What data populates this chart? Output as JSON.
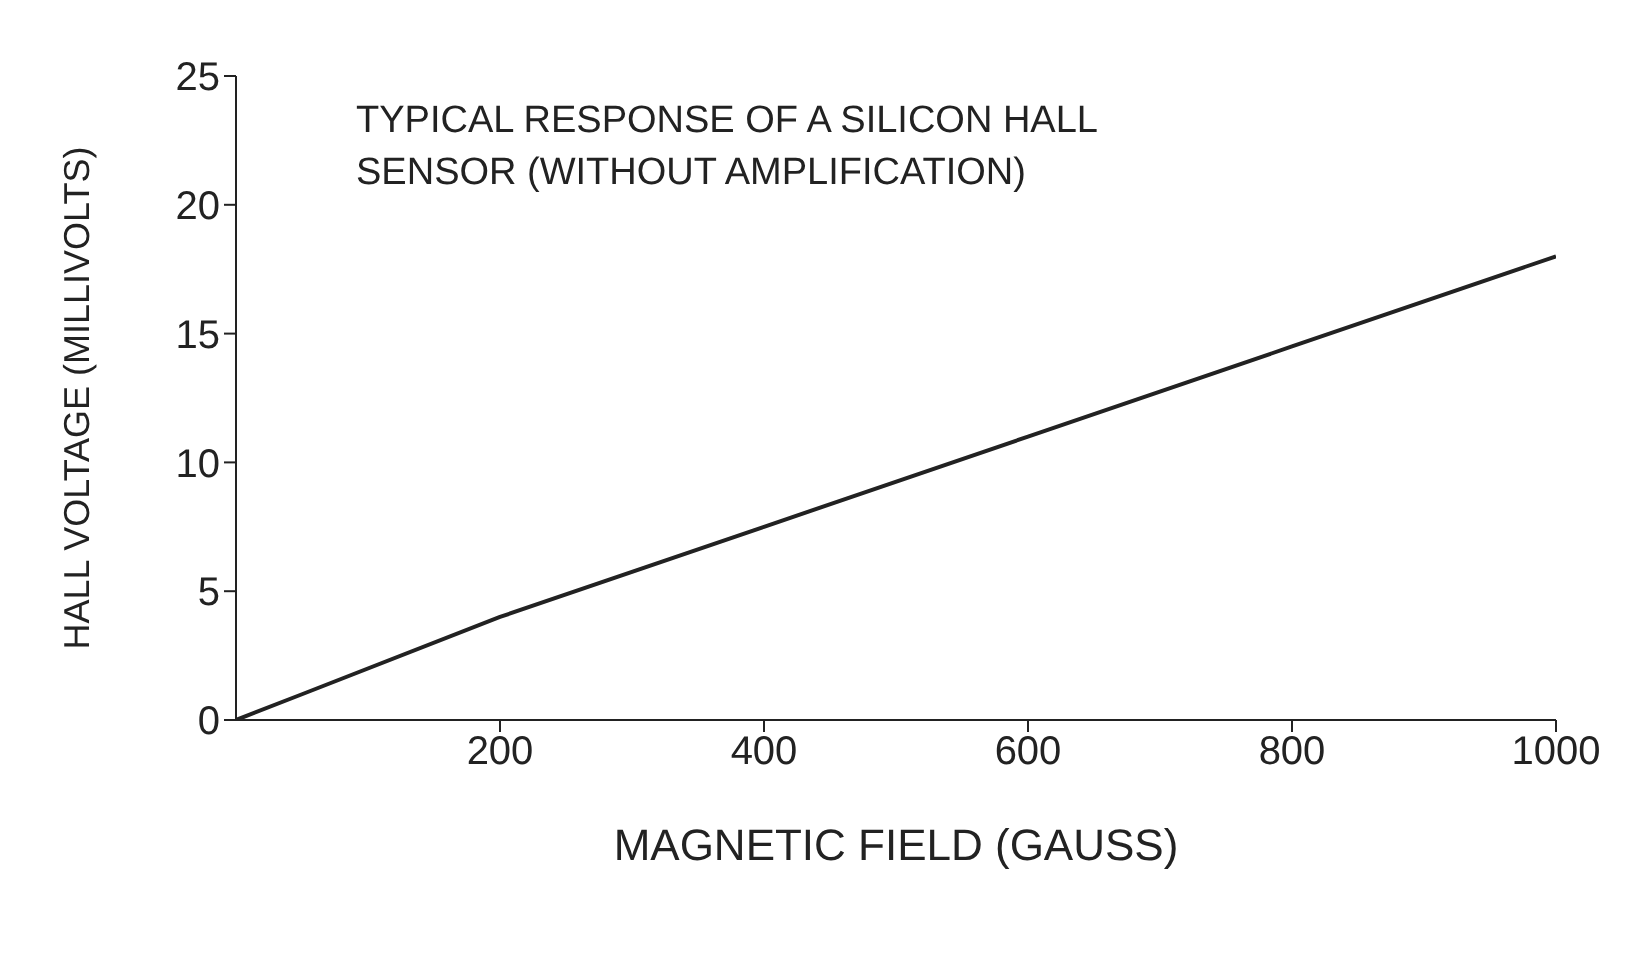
{
  "chart_data": {
    "type": "line",
    "title": "TYPICAL RESPONSE OF A SILICON HALL SENSOR (WITHOUT AMPLIFICATION)",
    "xlabel": "MAGNETIC FIELD (GAUSS)",
    "ylabel": "HALL VOLTAGE (MILLIVOLTS)",
    "x": [
      0,
      50,
      200,
      400,
      600,
      800,
      1000
    ],
    "series": [
      {
        "color": "#222222",
        "values": [
          0,
          1,
          4,
          7.5,
          11,
          14.5,
          18
        ]
      }
    ],
    "xlim": [
      0,
      1000
    ],
    "xticks": [
      200,
      400,
      600,
      800,
      1000
    ],
    "ylim": [
      0,
      25
    ],
    "yticks": [
      0,
      5,
      10,
      15,
      20,
      25
    ],
    "grid": false,
    "legend": false,
    "marker": "none",
    "line_style": "solid"
  }
}
